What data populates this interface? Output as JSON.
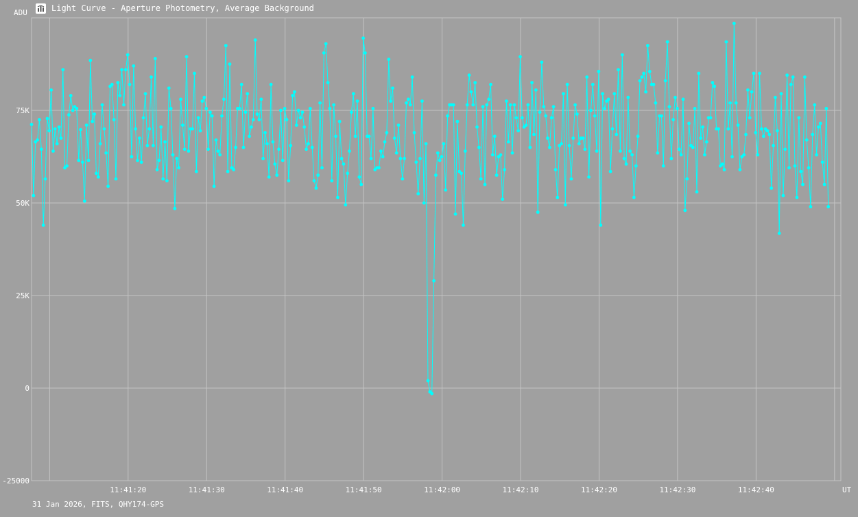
{
  "window": {
    "title": "Light Curve - Aperture Photometry, Average Background",
    "icon": "light-curve-app-icon",
    "footer": "31 Jan 2026, FITS, QHY174-GPS"
  },
  "colors": {
    "background": "#a0a0a0",
    "series": "#00ffff",
    "grid": "#c4c4c4",
    "text": "#ffffff"
  },
  "chart_data": {
    "type": "line",
    "title": "Light Curve - Aperture Photometry, Average Background",
    "xlabel": "UT",
    "ylabel": "ADU",
    "ylim": [
      -25000,
      100000
    ],
    "grid": true,
    "legend": "none",
    "x_ticks": [
      "11:41:20",
      "11:41:30",
      "11:41:40",
      "11:41:50",
      "11:42:00",
      "11:42:10",
      "11:42:20",
      "11:42:30",
      "11:42:40"
    ],
    "x_tick_values": [
      20,
      30,
      40,
      50,
      60,
      70,
      80,
      90,
      100
    ],
    "y_ticks": [
      {
        "value": -25000,
        "label": "-25000"
      },
      {
        "value": 0,
        "label": "0"
      },
      {
        "value": 25000,
        "label": "25K"
      },
      {
        "value": 50000,
        "label": "50K"
      },
      {
        "value": 75000,
        "label": "75K"
      }
    ],
    "xlim": [
      7.7,
      110.8
    ],
    "x_unit": "seconds after 11:41:00 UT",
    "sample_interval_s": 0.1,
    "series": [
      {
        "name": "",
        "x_start": 7.7,
        "x_step": 0.25,
        "values": [
          71200,
          52000,
          66500,
          67000,
          72500,
          64500,
          44000,
          56500,
          72800,
          69500,
          80500,
          64000,
          70000,
          66000,
          70500,
          67500,
          86000,
          59500,
          60000,
          73800,
          79000,
          75000,
          76000,
          75500,
          61500,
          69800,
          61000,
          50500,
          71000,
          61500,
          88500,
          72000,
          74000,
          58000,
          57000,
          66000,
          76500,
          70000,
          63500,
          54500,
          81500,
          82000,
          72500,
          56500,
          82500,
          79000,
          86000,
          76500,
          86000,
          90000,
          82000,
          62500,
          87000,
          70000,
          61500,
          67500,
          61000,
          73000,
          79500,
          65500,
          70000,
          84000,
          65500,
          89000,
          59000,
          61500,
          70500,
          56500,
          66500,
          56000,
          81000,
          75500,
          63000,
          48500,
          62000,
          59500,
          78000,
          71000,
          64500,
          89500,
          64000,
          70000,
          70000,
          85000,
          58500,
          73000,
          69500,
          77500,
          78500,
          75500,
          64500,
          74500,
          73500,
          54500,
          67000,
          64000,
          63000,
          73500,
          78000,
          92500,
          58500,
          87500,
          59500,
          59000,
          65000,
          75500,
          75500,
          82000,
          65000,
          74500,
          79500,
          68000,
          70500,
          72500,
          94000,
          74000,
          72500,
          78000,
          62000,
          69000,
          66000,
          57000,
          82000,
          66500,
          60500,
          57500,
          64500,
          75000,
          61500,
          75500,
          72500,
          56000,
          65500,
          79000,
          80000,
          71000,
          75000,
          73000,
          74500,
          70500,
          64500,
          66000,
          75500,
          65000,
          56000,
          54000,
          57500,
          77000,
          59500,
          90500,
          93000,
          82500,
          75500,
          56000,
          76500,
          68000,
          51500,
          72000,
          62000,
          60500,
          49500,
          58000,
          64000,
          74500,
          79500,
          68000,
          77500,
          57000,
          55000,
          94500,
          90500,
          68000,
          68000,
          62000,
          75500,
          59000,
          59500,
          59500,
          64000,
          62500,
          66500,
          69000,
          88800,
          77500,
          81000,
          67500,
          63500,
          71000,
          62000,
          56500,
          62000,
          77000,
          78000,
          76500,
          84000,
          69000,
          61000,
          52500,
          62000,
          77500,
          50000,
          66000,
          2000,
          -1000,
          -1500,
          29000,
          57500,
          63500,
          61500,
          62500,
          66000,
          53500,
          73500,
          76500,
          76500,
          76500,
          47000,
          72000,
          58500,
          58000,
          44000,
          64000,
          76500,
          84500,
          80000,
          76500,
          82500,
          70500,
          65000,
          56500,
          76000,
          55000,
          76500,
          78000,
          82000,
          63000,
          68000,
          57500,
          62500,
          63000,
          51000,
          59000,
          77500,
          66500,
          76500,
          63500,
          76500,
          73000,
          69500,
          89500,
          73000,
          70500,
          71000,
          76500,
          65000,
          82500,
          68500,
          80500,
          47500,
          74500,
          88000,
          76000,
          73500,
          67500,
          65000,
          73000,
          76000,
          59000,
          51500,
          65500,
          66000,
          79500,
          49500,
          82000,
          65500,
          56500,
          67500,
          76500,
          74000,
          66000,
          67500,
          67500,
          64500,
          84000,
          57000,
          75000,
          82000,
          73500,
          64000,
          85500,
          44000,
          79500,
          75500,
          77500,
          78000,
          58500,
          70000,
          79500,
          68500,
          86000,
          64000,
          90000,
          62000,
          60500,
          78500,
          64000,
          63000,
          51500,
          60000,
          68000,
          83000,
          84000,
          85000,
          80000,
          92500,
          85500,
          82000,
          82000,
          77000,
          63500,
          73500,
          73500,
          60000,
          83000,
          93500,
          76000,
          62000,
          72500,
          78500,
          75500,
          64500,
          63000,
          78000,
          48000,
          56500,
          71500,
          65500,
          65000,
          75500,
          53000,
          85000,
          67500,
          70500,
          63000,
          66500,
          73000,
          73000,
          82500,
          81500,
          70000,
          70000,
          60000,
          60500,
          59000,
          93500,
          70000,
          77000,
          62500,
          98500,
          77000,
          71000,
          59000,
          62500,
          63000,
          68500,
          80500,
          73000,
          80000,
          85000,
          69000,
          63000,
          85000,
          70000,
          68000,
          70000,
          69500,
          68500,
          54000,
          65500,
          78500,
          69500,
          41800,
          79500,
          52000,
          64500,
          84500,
          59500,
          82000,
          84000,
          60000,
          51500,
          73000,
          58500,
          55000,
          84000,
          67000,
          59500,
          49000,
          68500,
          76500,
          63000,
          70500,
          71500,
          61000,
          55000,
          75500,
          49000
        ]
      }
    ]
  }
}
